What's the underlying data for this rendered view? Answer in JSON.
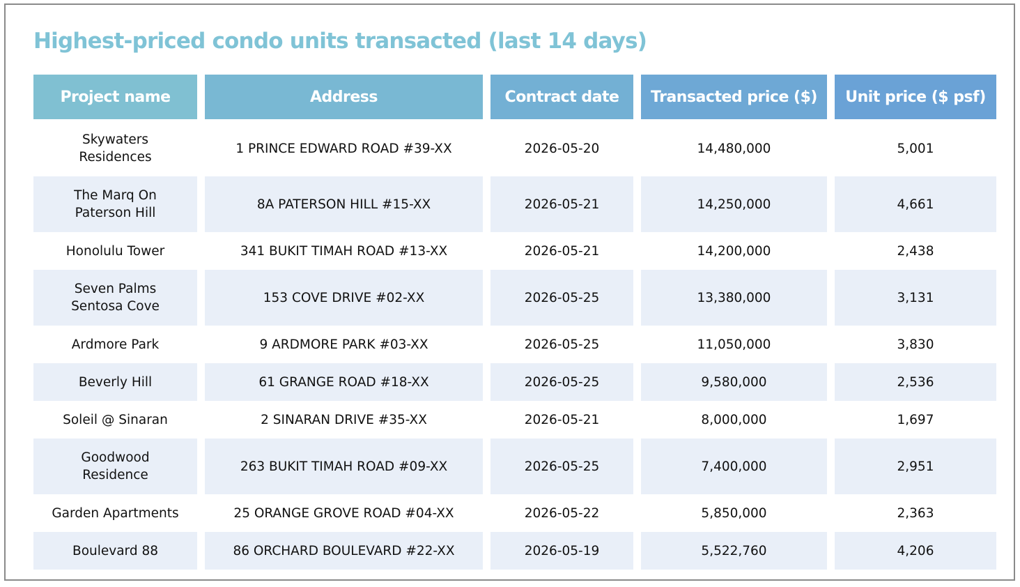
{
  "title": "Highest-priced condo units transacted (last 14 days)",
  "table": {
    "headers": [
      "Project name",
      "Address",
      "Contract date",
      "Transacted price ($)",
      "Unit price ($ psf)"
    ],
    "rows": [
      {
        "project": "Skywaters Residences",
        "address": "1 PRINCE EDWARD ROAD  #39-XX",
        "date": "2026-05-20",
        "price": "14,480,000",
        "psf": "5,001"
      },
      {
        "project": "The Marq On Paterson Hill",
        "address": "8A PATERSON HILL  #15-XX",
        "date": "2026-05-21",
        "price": "14,250,000",
        "psf": "4,661"
      },
      {
        "project": "Honolulu Tower",
        "address": "341 BUKIT TIMAH ROAD  #13-XX",
        "date": "2026-05-21",
        "price": "14,200,000",
        "psf": "2,438"
      },
      {
        "project": "Seven Palms Sentosa Cove",
        "address": "153 COVE DRIVE  #02-XX",
        "date": "2026-05-25",
        "price": "13,380,000",
        "psf": "3,131"
      },
      {
        "project": "Ardmore Park",
        "address": "9 ARDMORE PARK  #03-XX",
        "date": "2026-05-25",
        "price": "11,050,000",
        "psf": "3,830"
      },
      {
        "project": "Beverly Hill",
        "address": "61 GRANGE ROAD  #18-XX",
        "date": "2026-05-25",
        "price": "9,580,000",
        "psf": "2,536"
      },
      {
        "project": "Soleil @ Sinaran",
        "address": "2 SINARAN DRIVE  #35-XX",
        "date": "2026-05-21",
        "price": "8,000,000",
        "psf": "1,697"
      },
      {
        "project": "Goodwood Residence",
        "address": "263 BUKIT TIMAH ROAD  #09-XX",
        "date": "2026-05-25",
        "price": "7,400,000",
        "psf": "2,951"
      },
      {
        "project": "Garden Apartments",
        "address": "25 ORANGE GROVE ROAD  #04-XX",
        "date": "2026-05-22",
        "price": "5,850,000",
        "psf": "2,363"
      },
      {
        "project": "Boulevard 88",
        "address": "86 ORCHARD BOULEVARD  #22-XX",
        "date": "2026-05-19",
        "price": "5,522,760",
        "psf": "4,206"
      }
    ]
  },
  "colors": {
    "title": "#7fc3d6",
    "header_start": "#80c0d2",
    "header_end": "#6aa2d6",
    "row_shade": "#e9eff8"
  }
}
